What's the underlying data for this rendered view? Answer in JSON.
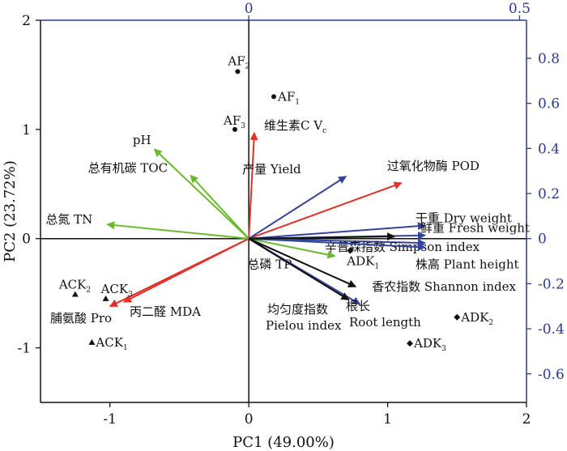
{
  "chart_data": {
    "type": "biplot",
    "xlabel": "PC1 (49.00%)",
    "ylabel": "PC2 (23.72%)",
    "xlim": [
      -1.5,
      2
    ],
    "ylim": [
      -1.5,
      2
    ],
    "x_ticks": [
      "-1",
      "0",
      "1",
      "2"
    ],
    "y_ticks": [
      "-1",
      "0",
      "1",
      "2"
    ],
    "top_ticks": [
      "0",
      "0.5"
    ],
    "right_ticks": [
      "-0.6",
      "-0.4",
      "-0.2",
      "0",
      "0.2",
      "0.4",
      "0.6",
      "0.8"
    ],
    "secondary_axis_color": "#2b3a8f",
    "colors": {
      "red": "#e03028",
      "green": "#6ab82e",
      "blue": "#33449a",
      "black": "#111111"
    },
    "points": [
      {
        "label": "AF",
        "sub": "2",
        "x": -0.08,
        "y": 1.53,
        "marker": "circle",
        "anchor": "above"
      },
      {
        "label": "AF",
        "sub": "1",
        "x": 0.18,
        "y": 1.3,
        "marker": "circle",
        "anchor": "right"
      },
      {
        "label": "AF",
        "sub": "3",
        "x": -0.1,
        "y": 1.0,
        "marker": "circle",
        "anchor": "above"
      },
      {
        "label": "ACK",
        "sub": "2",
        "x": -1.25,
        "y": -0.51,
        "marker": "triangle",
        "anchor": "above"
      },
      {
        "label": "ACK",
        "sub": "3",
        "x": -1.03,
        "y": -0.55,
        "marker": "triangle",
        "anchor": "above"
      },
      {
        "label": "ACK",
        "sub": "1",
        "x": -1.13,
        "y": -0.95,
        "marker": "triangle",
        "anchor": "right"
      },
      {
        "label": "ADK",
        "sub": "1",
        "x": 0.73,
        "y": -0.11,
        "marker": "diamond",
        "anchor": "below-right"
      },
      {
        "label": "ADK",
        "sub": "2",
        "x": 1.5,
        "y": -0.72,
        "marker": "diamond",
        "anchor": "right"
      },
      {
        "label": "ADK",
        "sub": "3",
        "x": 1.16,
        "y": -0.96,
        "marker": "diamond",
        "anchor": "right"
      }
    ],
    "vectors": [
      {
        "label": "维生素C V",
        "sub": "c",
        "x": 0.04,
        "y": 0.97,
        "color": "red"
      },
      {
        "label": "过氧化物酶 POD",
        "x": 1.1,
        "y": 0.51,
        "color": "red"
      },
      {
        "label": "脯氨酸 Pro",
        "x": -1.0,
        "y": -0.62,
        "color": "red"
      },
      {
        "label": "丙二醛 MDA",
        "x": -0.9,
        "y": -0.58,
        "color": "red"
      },
      {
        "label": "pH",
        "x": -0.68,
        "y": 0.82,
        "color": "green"
      },
      {
        "label": "总有机碳 TOC",
        "x": -0.42,
        "y": 0.58,
        "color": "green"
      },
      {
        "label": "总氮 TN",
        "x": -1.02,
        "y": 0.13,
        "color": "green"
      },
      {
        "label": "总磷 TP",
        "x": 0.62,
        "y": -0.16,
        "color": "green"
      },
      {
        "label": "产量 Yield",
        "x": 0.7,
        "y": 0.57,
        "color": "blue"
      },
      {
        "label": "干重 Dry weight",
        "x": 1.27,
        "y": 0.12,
        "color": "blue"
      },
      {
        "label": "鲜重 Fresh weight",
        "x": 1.27,
        "y": 0.03,
        "color": "blue"
      },
      {
        "label": "辛普森指数 Simpson index",
        "x": 1.27,
        "y": -0.04,
        "color": "blue"
      },
      {
        "label": "株高 Plant height",
        "x": 1.27,
        "y": -0.08,
        "color": "blue"
      },
      {
        "label": "根长 Root length",
        "x": 0.8,
        "y": -0.6,
        "color": "blue"
      },
      {
        "label": "香农指数 Shannon index",
        "x": 0.77,
        "y": -0.44,
        "color": "black"
      },
      {
        "label": "均匀度指数 Pielou index",
        "x": 0.72,
        "y": -0.56,
        "color": "black"
      },
      {
        "label": "",
        "x": 1.05,
        "y": 0.02,
        "color": "black"
      }
    ]
  }
}
